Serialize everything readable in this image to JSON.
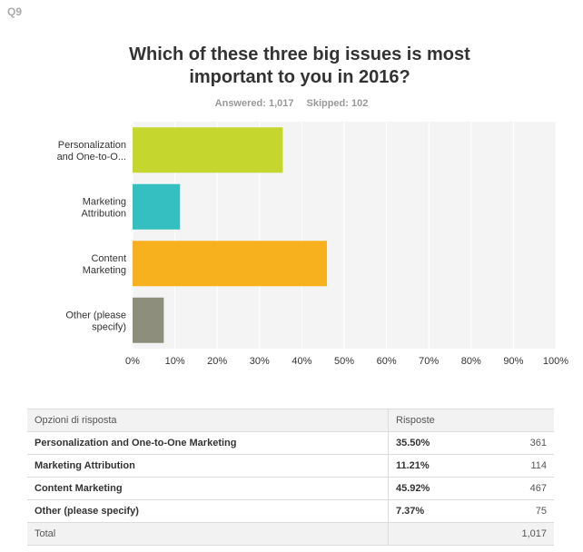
{
  "question_number": "Q9",
  "stats": {
    "answered": "Answered: 1,017",
    "skipped": "Skipped: 102"
  },
  "chart_data": {
    "type": "bar",
    "orientation": "horizontal",
    "title_lines": [
      "Which of these three big issues is most",
      "important to you in 2016?"
    ],
    "categories": [
      [
        "Personalization",
        "and One-to-O..."
      ],
      [
        "Marketing",
        "Attribution"
      ],
      [
        "Content",
        "Marketing"
      ],
      [
        "Other (please",
        "specify)"
      ]
    ],
    "values": [
      35.5,
      11.21,
      45.92,
      7.37
    ],
    "colors": [
      "#c5d62e",
      "#35bfc0",
      "#f7b11e",
      "#8e8e7c"
    ],
    "xlim": [
      0,
      100
    ],
    "ticks": [
      "0%",
      "10%",
      "20%",
      "30%",
      "40%",
      "50%",
      "60%",
      "70%",
      "80%",
      "90%",
      "100%"
    ],
    "grid": true
  },
  "table": {
    "headers": [
      "Opzioni di risposta",
      "Risposte",
      ""
    ],
    "rows": [
      {
        "label": "Personalization and One-to-One Marketing",
        "percent": "35.50%",
        "count": "361"
      },
      {
        "label": "Marketing Attribution",
        "percent": "11.21%",
        "count": "114"
      },
      {
        "label": "Content Marketing",
        "percent": "45.92%",
        "count": "467"
      },
      {
        "label": "Other (please specify)",
        "percent": "7.37%",
        "count": "75"
      }
    ],
    "total_label": "Total",
    "total_count": "1,017"
  }
}
